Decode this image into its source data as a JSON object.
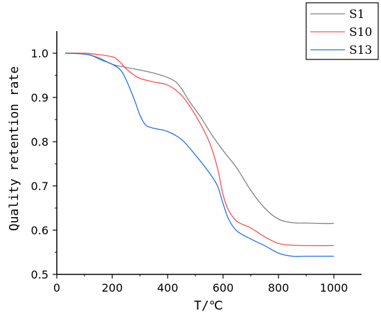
{
  "chart_data": {
    "type": "line",
    "title": "",
    "xlabel": "T/℃",
    "ylabel": "Quality retention rate",
    "xlim": [
      0,
      1100
    ],
    "ylim": [
      0.5,
      1.05
    ],
    "xticks": [
      0,
      200,
      400,
      600,
      800,
      1000
    ],
    "yticks": [
      0.5,
      0.6,
      0.7,
      0.8,
      0.9,
      1.0
    ],
    "xtick_labels": [
      "0",
      "200",
      "400",
      "600",
      "800",
      "1000"
    ],
    "ytick_labels": [
      "0.5",
      "0.6",
      "0.7",
      "0.8",
      "0.9",
      "1.0"
    ],
    "grid": false,
    "legend_position": "top-right",
    "series": [
      {
        "name": "S1",
        "color": "#808080",
        "x": [
          30,
          100,
          150,
          200,
          250,
          300,
          350,
          400,
          430,
          450,
          480,
          520,
          560,
          600,
          650,
          700,
          750,
          800,
          850,
          900,
          950,
          1000
        ],
        "y": [
          1.0,
          0.998,
          0.99,
          0.975,
          0.968,
          0.962,
          0.955,
          0.945,
          0.935,
          0.92,
          0.89,
          0.855,
          0.815,
          0.78,
          0.74,
          0.69,
          0.65,
          0.625,
          0.617,
          0.616,
          0.615,
          0.615
        ]
      },
      {
        "name": "S10",
        "color": "#ff4b4b",
        "x": [
          30,
          100,
          150,
          200,
          220,
          250,
          280,
          300,
          350,
          400,
          450,
          500,
          550,
          580,
          600,
          620,
          650,
          700,
          750,
          800,
          850,
          900,
          1000
        ],
        "y": [
          1.0,
          1.0,
          0.997,
          0.992,
          0.985,
          0.965,
          0.95,
          0.943,
          0.935,
          0.928,
          0.905,
          0.86,
          0.8,
          0.74,
          0.68,
          0.645,
          0.62,
          0.605,
          0.585,
          0.57,
          0.566,
          0.565,
          0.565
        ]
      },
      {
        "name": "S13",
        "color": "#1f6fe5",
        "x": [
          30,
          80,
          120,
          160,
          200,
          230,
          250,
          280,
          300,
          320,
          340,
          360,
          400,
          450,
          500,
          550,
          580,
          600,
          620,
          650,
          700,
          750,
          800,
          850,
          900,
          1000
        ],
        "y": [
          1.0,
          0.999,
          0.996,
          0.985,
          0.975,
          0.962,
          0.94,
          0.895,
          0.86,
          0.838,
          0.832,
          0.829,
          0.823,
          0.805,
          0.77,
          0.73,
          0.7,
          0.66,
          0.625,
          0.598,
          0.58,
          0.565,
          0.548,
          0.541,
          0.541,
          0.541
        ]
      }
    ]
  }
}
